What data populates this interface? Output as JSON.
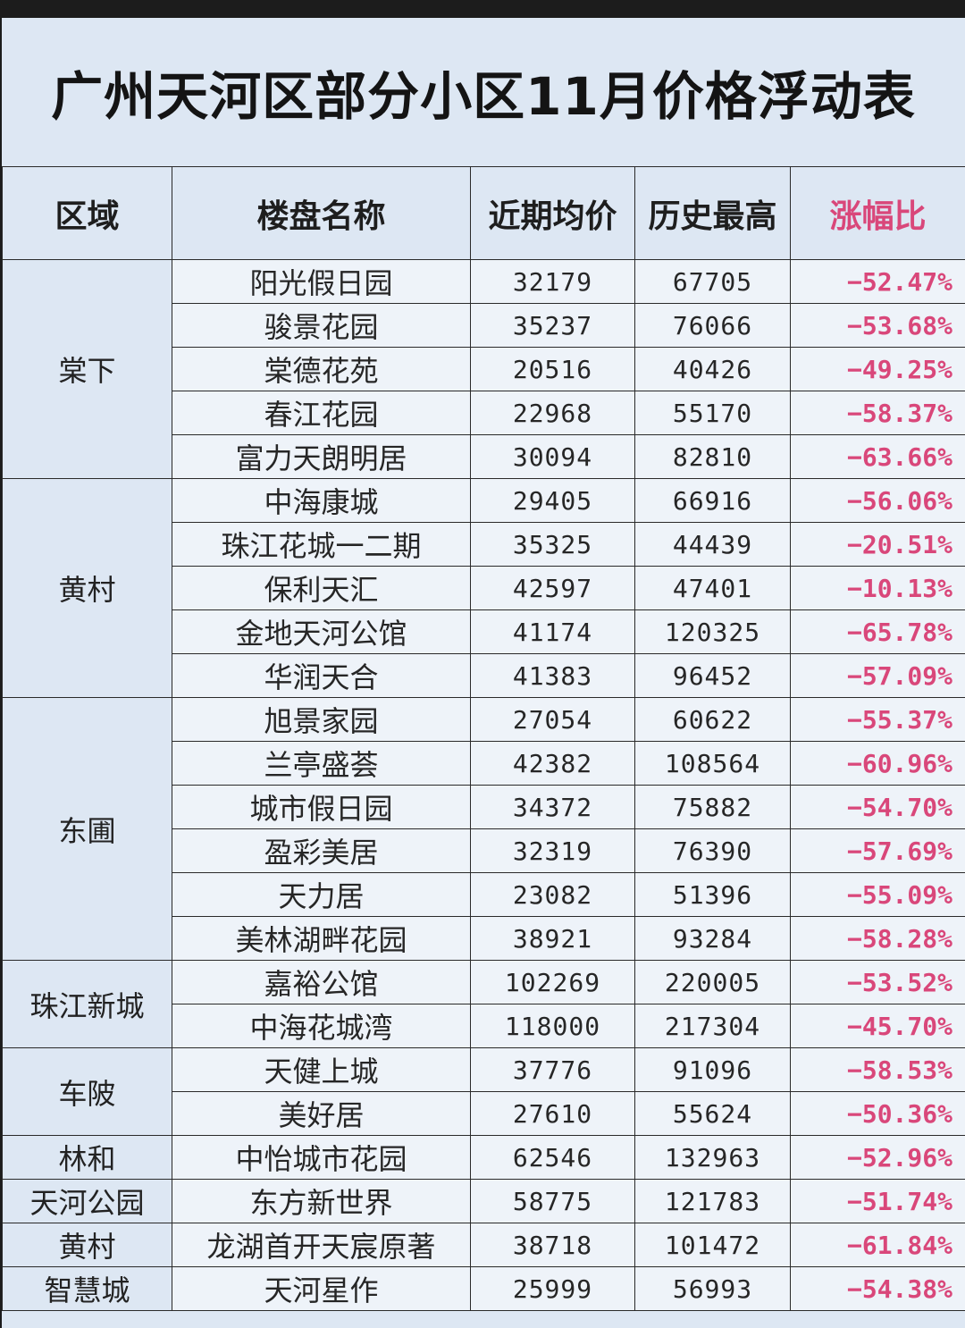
{
  "title": "广州天河区部分小区11月价格浮动表",
  "headers": {
    "area": "区域",
    "name": "楼盘名称",
    "recent_avg": "近期均价",
    "history_high": "历史最高",
    "change": "涨幅比"
  },
  "colors": {
    "header_bg": "#dde7f3",
    "change_text": "#d9477a",
    "border": "#2a2a2a"
  },
  "groups": [
    {
      "area": "棠下",
      "rows": [
        {
          "name": "阳光假日园",
          "recent_avg": "32179",
          "history_high": "67705",
          "change": "−52.47%"
        },
        {
          "name": "骏景花园",
          "recent_avg": "35237",
          "history_high": "76066",
          "change": "−53.68%"
        },
        {
          "name": "棠德花苑",
          "recent_avg": "20516",
          "history_high": "40426",
          "change": "−49.25%"
        },
        {
          "name": "春江花园",
          "recent_avg": "22968",
          "history_high": "55170",
          "change": "−58.37%"
        },
        {
          "name": "富力天朗明居",
          "recent_avg": "30094",
          "history_high": "82810",
          "change": "−63.66%"
        }
      ]
    },
    {
      "area": "黄村",
      "rows": [
        {
          "name": "中海康城",
          "recent_avg": "29405",
          "history_high": "66916",
          "change": "−56.06%"
        },
        {
          "name": "珠江花城一二期",
          "recent_avg": "35325",
          "history_high": "44439",
          "change": "−20.51%"
        },
        {
          "name": "保利天汇",
          "recent_avg": "42597",
          "history_high": "47401",
          "change": "−10.13%"
        },
        {
          "name": "金地天河公馆",
          "recent_avg": "41174",
          "history_high": "120325",
          "change": "−65.78%"
        },
        {
          "name": "华润天合",
          "recent_avg": "41383",
          "history_high": "96452",
          "change": "−57.09%"
        }
      ]
    },
    {
      "area": "东圃",
      "rows": [
        {
          "name": "旭景家园",
          "recent_avg": "27054",
          "history_high": "60622",
          "change": "−55.37%"
        },
        {
          "name": "兰亭盛荟",
          "recent_avg": "42382",
          "history_high": "108564",
          "change": "−60.96%"
        },
        {
          "name": "城市假日园",
          "recent_avg": "34372",
          "history_high": "75882",
          "change": "−54.70%"
        },
        {
          "name": "盈彩美居",
          "recent_avg": "32319",
          "history_high": "76390",
          "change": "−57.69%"
        },
        {
          "name": "天力居",
          "recent_avg": "23082",
          "history_high": "51396",
          "change": "−55.09%"
        },
        {
          "name": "美林湖畔花园",
          "recent_avg": "38921",
          "history_high": "93284",
          "change": "−58.28%"
        }
      ]
    },
    {
      "area": "珠江新城",
      "rows": [
        {
          "name": "嘉裕公馆",
          "recent_avg": "102269",
          "history_high": "220005",
          "change": "−53.52%"
        },
        {
          "name": "中海花城湾",
          "recent_avg": "118000",
          "history_high": "217304",
          "change": "−45.70%"
        }
      ]
    },
    {
      "area": "车陂",
      "rows": [
        {
          "name": "天健上城",
          "recent_avg": "37776",
          "history_high": "91096",
          "change": "−58.53%"
        },
        {
          "name": "美好居",
          "recent_avg": "27610",
          "history_high": "55624",
          "change": "−50.36%"
        }
      ]
    },
    {
      "area": "林和",
      "rows": [
        {
          "name": "中怡城市花园",
          "recent_avg": "62546",
          "history_high": "132963",
          "change": "−52.96%"
        }
      ]
    },
    {
      "area": "天河公园",
      "rows": [
        {
          "name": "东方新世界",
          "recent_avg": "58775",
          "history_high": "121783",
          "change": "−51.74%"
        }
      ]
    },
    {
      "area": "黄村",
      "rows": [
        {
          "name": "龙湖首开天宸原著",
          "recent_avg": "38718",
          "history_high": "101472",
          "change": "−61.84%"
        }
      ]
    },
    {
      "area": "智慧城",
      "rows": [
        {
          "name": "天河星作",
          "recent_avg": "25999",
          "history_high": "56993",
          "change": "−54.38%"
        }
      ]
    }
  ]
}
